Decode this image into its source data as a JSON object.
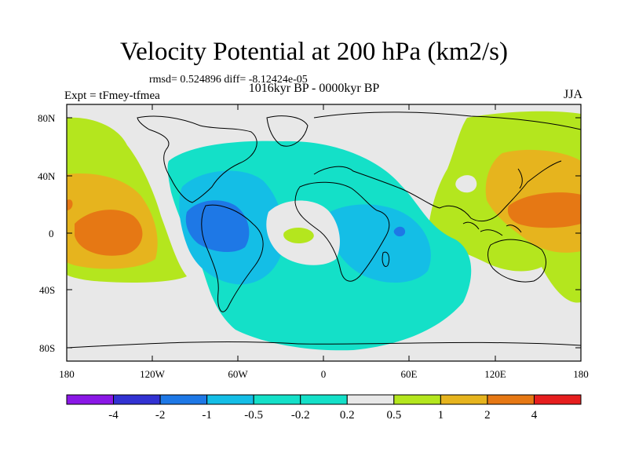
{
  "title": "Velocity Potential at 200 hPa (km2/s)",
  "stats": "rmsd= 0.524896 diff= -8.12424e-05",
  "experiment": "Expt = tFmey-tfmea",
  "period": "1016kyr BP - 0000kyr BP",
  "season": "JJA",
  "lat_labels": [
    "80N",
    "40N",
    "0",
    "40S",
    "80S"
  ],
  "lon_labels": [
    "180",
    "120W",
    "60W",
    "0",
    "60E",
    "120E",
    "180"
  ],
  "colorbar": {
    "labels": [
      "-4",
      "-2",
      "-1",
      "-0.5",
      "-0.2",
      "0.2",
      "0.5",
      "1",
      "2",
      "4"
    ],
    "colors": [
      "#8a17e6",
      "#3232d2",
      "#1e78e6",
      "#14bee6",
      "#14e0c8",
      "#e8e8e8",
      "#b4e61e",
      "#e6b41e",
      "#e67814",
      "#e61e1e"
    ]
  },
  "colors": {
    "neutral": "#e8e8e8",
    "light_positive": "#b4e61e",
    "moderate_positive": "#e6b41e",
    "strong_positive": "#e67814",
    "light_negative": "#14e0c8",
    "moderate_negative": "#14bee6",
    "strong_negative": "#1e78e6"
  }
}
